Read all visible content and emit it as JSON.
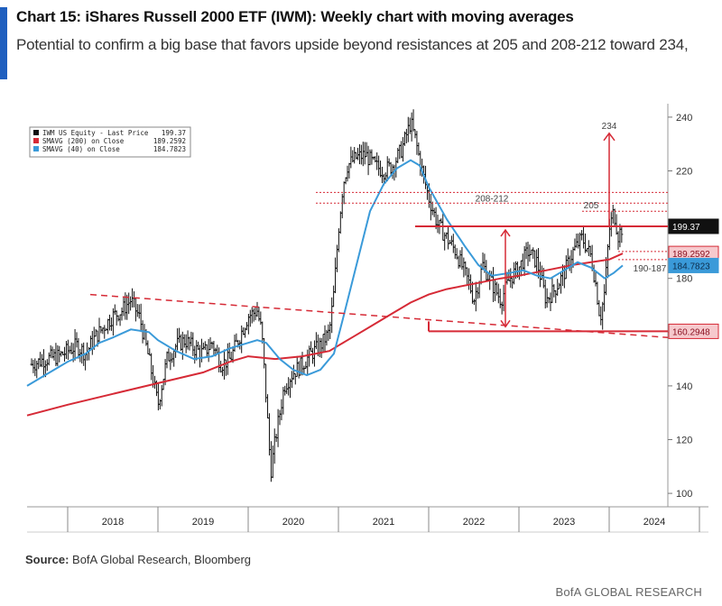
{
  "header": {
    "title": "Chart 15: iShares Russell 2000 ETF (IWM): Weekly chart with moving averages",
    "subtitle": "Potential to confirm a big base that favors upside beyond resistances at 205 and 208-212 toward 234,"
  },
  "footer": {
    "source_label": "Source:",
    "source_text": "BofA Global Research, Bloomberg",
    "brand": "BofA GLOBAL RESEARCH"
  },
  "colors": {
    "price": "#111111",
    "sma200": "#d62a36",
    "sma40": "#3a9ad9",
    "annotation": "#d62a36",
    "support_tag": "#d62a36",
    "sma40_tag": "#3a9ad9",
    "price_tag": "#111111"
  },
  "chart_data": {
    "type": "line",
    "title": "Chart 15: iShares Russell 2000 ETF (IWM): Weekly chart with moving averages",
    "xlabel": "",
    "ylabel": "",
    "x_ticks": [
      "2018",
      "2019",
      "2020",
      "2021",
      "2022",
      "2023",
      "2024"
    ],
    "y_ticks": [
      100,
      120,
      140,
      160,
      180,
      200,
      220,
      240
    ],
    "ylim": [
      95,
      245
    ],
    "xlim": [
      2017.55,
      2024.65
    ],
    "grid": false,
    "legend_position": "top-left",
    "legend": [
      {
        "name": "IWM US Equity - Last Price",
        "value": "199.37",
        "color": "#111111"
      },
      {
        "name": "SMAVG (200)  on Close",
        "value": "189.2592",
        "color": "#d62a36"
      },
      {
        "name": "SMAVG (40)  on Close",
        "value": "184.7823",
        "color": "#3a9ad9"
      }
    ],
    "last_values": {
      "price": "199.37",
      "sma200": "189.2592",
      "sma40": "184.7823",
      "support": "160.2948"
    },
    "series": [
      {
        "name": "IWM US Equity - Last Price",
        "type": "ohlc_weekly",
        "x": [
          2017.6,
          2017.75,
          2017.9,
          2018.0,
          2018.1,
          2018.2,
          2018.3,
          2018.4,
          2018.5,
          2018.6,
          2018.7,
          2018.8,
          2018.9,
          2019.0,
          2019.1,
          2019.2,
          2019.3,
          2019.4,
          2019.5,
          2019.6,
          2019.7,
          2019.8,
          2019.9,
          2020.0,
          2020.1,
          2020.15,
          2020.2,
          2020.25,
          2020.3,
          2020.4,
          2020.5,
          2020.6,
          2020.7,
          2020.8,
          2020.9,
          2020.95,
          2021.0,
          2021.05,
          2021.1,
          2021.2,
          2021.3,
          2021.4,
          2021.5,
          2021.6,
          2021.7,
          2021.8,
          2021.85,
          2021.9,
          2022.0,
          2022.1,
          2022.2,
          2022.3,
          2022.4,
          2022.45,
          2022.5,
          2022.6,
          2022.7,
          2022.8,
          2022.9,
          2023.0,
          2023.1,
          2023.2,
          2023.3,
          2023.4,
          2023.5,
          2023.6,
          2023.7,
          2023.8,
          2023.85,
          2023.9,
          2023.95,
          2024.0,
          2024.05,
          2024.1,
          2024.15
        ],
        "values": [
          148,
          150,
          151,
          153,
          155,
          152,
          158,
          162,
          166,
          168,
          172,
          165,
          150,
          133,
          150,
          155,
          157,
          154,
          152,
          156,
          148,
          150,
          158,
          166,
          168,
          160,
          135,
          108,
          120,
          140,
          145,
          148,
          152,
          155,
          160,
          175,
          198,
          215,
          222,
          225,
          226,
          222,
          220,
          222,
          228,
          238,
          232,
          224,
          210,
          200,
          195,
          190,
          182,
          178,
          172,
          185,
          178,
          172,
          180,
          184,
          190,
          186,
          172,
          176,
          182,
          190,
          195,
          188,
          178,
          165,
          175,
          198,
          205,
          196,
          199.37
        ]
      },
      {
        "name": "SMAVG (200)  on Close",
        "x": [
          2017.55,
          2018.0,
          2018.5,
          2019.0,
          2019.5,
          2019.8,
          2020.0,
          2020.3,
          2020.6,
          2020.9,
          2021.0,
          2021.2,
          2021.4,
          2021.6,
          2021.8,
          2022.0,
          2022.2,
          2022.5,
          2022.8,
          2023.0,
          2023.3,
          2023.6,
          2023.8,
          2024.0,
          2024.15
        ],
        "values": [
          129,
          133,
          137,
          141,
          145,
          149,
          151,
          150,
          151,
          153,
          155,
          159,
          163,
          167,
          171,
          174,
          176,
          178,
          180,
          181,
          183,
          185,
          186,
          187,
          189.2592
        ]
      },
      {
        "name": "SMAVG (40)  on Close",
        "x": [
          2017.55,
          2017.8,
          2018.0,
          2018.2,
          2018.35,
          2018.5,
          2018.7,
          2018.9,
          2019.0,
          2019.2,
          2019.4,
          2019.6,
          2019.8,
          2020.0,
          2020.1,
          2020.2,
          2020.35,
          2020.5,
          2020.65,
          2020.8,
          2020.95,
          2021.05,
          2021.2,
          2021.35,
          2021.5,
          2021.65,
          2021.8,
          2021.9,
          2022.0,
          2022.2,
          2022.4,
          2022.55,
          2022.7,
          2022.9,
          2023.05,
          2023.2,
          2023.35,
          2023.5,
          2023.65,
          2023.8,
          2023.95,
          2024.05,
          2024.15
        ],
        "values": [
          140,
          145,
          149,
          152,
          156,
          158,
          161,
          160,
          157,
          153,
          150,
          151,
          154,
          156,
          157,
          156,
          150,
          146,
          144,
          146,
          152,
          165,
          185,
          205,
          215,
          221,
          224,
          222,
          214,
          202,
          192,
          185,
          181,
          182,
          183,
          181,
          180,
          183,
          186,
          184,
          180,
          182,
          184.7823
        ]
      }
    ],
    "annotations": [
      {
        "label": "234",
        "x": 2024.0,
        "from": 199.37,
        "to": 234,
        "kind": "target-arrow"
      },
      {
        "label": "208-212",
        "from": 208,
        "to": 212,
        "kind": "resistance-band"
      },
      {
        "label": "205",
        "value": 205,
        "kind": "resistance"
      },
      {
        "label": "190-187",
        "from": 187,
        "to": 190,
        "kind": "support-band"
      },
      {
        "label": "199.37",
        "value": 199.37,
        "kind": "resistance-line"
      },
      {
        "label": "160.2948",
        "value": 160.2948,
        "kind": "support-line"
      }
    ]
  }
}
